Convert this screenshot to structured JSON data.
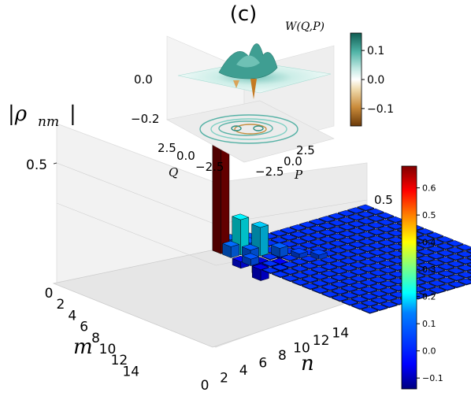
{
  "panel_label": "(c)",
  "colorscale": [
    "#00007f",
    "#0000ff",
    "#007fff",
    "#00ffff",
    "#7fff7f",
    "#ffff00",
    "#ff7f00",
    "#ff0000",
    "#7f0000"
  ],
  "chart_data": [
    {
      "type": "bar3d",
      "zlabel": "|ρ_nm|",
      "xlabel": "n",
      "ylabel": "m",
      "x_ticks": [
        "0",
        "2",
        "4",
        "6",
        "8",
        "10",
        "12",
        "14"
      ],
      "y_ticks": [
        "0",
        "2",
        "4",
        "6",
        "8",
        "10",
        "12",
        "14"
      ],
      "z_ticks": [
        "0.5"
      ],
      "dims": [
        16,
        16
      ],
      "zlim": [
        -0.12,
        0.65
      ],
      "colorbar": {
        "range": [
          -0.14,
          0.68
        ],
        "ticks": [
          "0.6",
          "0.5",
          "0.4",
          "0.3",
          "0.2",
          "0.1",
          "0.0",
          "−0.1"
        ]
      },
      "bars": [
        {
          "m": 0,
          "n": 0,
          "value": 0.68
        },
        {
          "m": 1,
          "n": 1,
          "value": 0.16
        },
        {
          "m": 2,
          "n": 2,
          "value": 0.13
        },
        {
          "m": 0,
          "n": 1,
          "value": 0.05
        },
        {
          "m": 1,
          "n": 0,
          "value": 0.05
        },
        {
          "m": 0,
          "n": 2,
          "value": -0.03
        },
        {
          "m": 2,
          "n": 0,
          "value": -0.03
        },
        {
          "m": 0,
          "n": 3,
          "value": 0.03
        },
        {
          "m": 3,
          "n": 0,
          "value": 0.03
        },
        {
          "m": 1,
          "n": 2,
          "value": 0.04
        },
        {
          "m": 2,
          "n": 1,
          "value": 0.04
        },
        {
          "m": 3,
          "n": 3,
          "value": 0.04
        },
        {
          "m": 4,
          "n": 4,
          "value": 0.02
        },
        {
          "m": 2,
          "n": 4,
          "value": -0.04
        },
        {
          "m": 4,
          "n": 2,
          "value": -0.04
        },
        {
          "m": 3,
          "n": 1,
          "value": -0.06
        },
        {
          "m": 1,
          "n": 3,
          "value": -0.02
        },
        {
          "m": 0,
          "n": 4,
          "value": 0.02
        },
        {
          "m": 4,
          "n": 0,
          "value": -0.05
        },
        {
          "m": 5,
          "n": 5,
          "value": 0.02
        }
      ]
    },
    {
      "type": "surface3d",
      "title": "W(Q,P)",
      "xlabel": "P",
      "ylabel": "Q",
      "P_ticks": [
        "−2.5",
        "0.0",
        "2.5"
      ],
      "Q_ticks": [
        "2.5",
        "0.0",
        "−2.5"
      ],
      "z_ticks": [
        "0.0",
        "−0.2"
      ],
      "zlim": [
        -0.25,
        0.15
      ],
      "colorbar": {
        "range": [
          -0.16,
          0.16
        ],
        "ticks": [
          "0.1",
          "0.0",
          "−0.1"
        ],
        "colors": [
          "#6b3a08",
          "#c98a3a",
          "#f0dcb0",
          "#ffffff",
          "#bfe8e2",
          "#4fb3a6",
          "#0f5c52"
        ]
      }
    }
  ]
}
